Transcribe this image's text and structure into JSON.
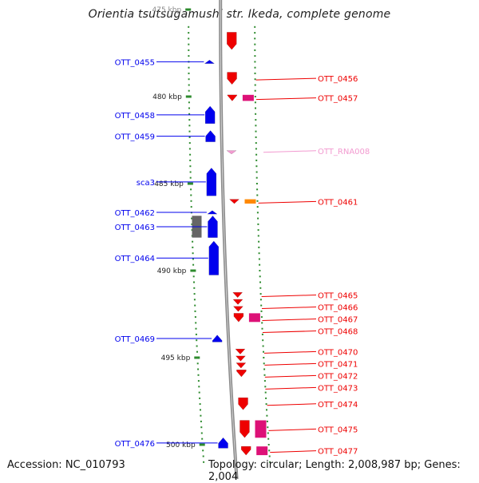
{
  "title": "Orientia tsutsugamushi str. Ikeda, complete genome",
  "footer": {
    "accession": "Accession: NC_010793",
    "topology": "Topology: circular; Length: 2,008,987 bp; Genes: 2,004"
  },
  "colors": {
    "backbone": "#8a8a8a",
    "tick": "#2e8b2e",
    "forward_gene": "#0000ee",
    "reverse_gene": "#ee0000",
    "reverse_pseudo": "#dd1177",
    "rna": "#f29ad0",
    "orange_feature": "#ff8800",
    "gray_feature": "#666666"
  },
  "scale_labels": [
    {
      "text": "475 kbp",
      "kbp": 475,
      "partial": true
    },
    {
      "text": "480 kbp",
      "kbp": 480
    },
    {
      "text": "485 kbp",
      "kbp": 485
    },
    {
      "text": "490 kbp",
      "kbp": 490
    },
    {
      "text": "495 kbp",
      "kbp": 495
    },
    {
      "text": "500 kbp",
      "kbp": 500
    }
  ],
  "forward_genes": [
    {
      "label": "OTT_0455",
      "start": 477.9,
      "end": 478.1
    },
    {
      "label": "OTT_0458",
      "start": 480.55,
      "end": 481.55
    },
    {
      "label": "OTT_0459",
      "start": 481.95,
      "end": 482.6
    },
    {
      "label": "sca3",
      "start": 484.1,
      "end": 485.7
    },
    {
      "label": "OTT_0462",
      "start": 486.55,
      "end": 486.75
    },
    {
      "label": "OTT_0463",
      "start": 486.85,
      "end": 488.1
    },
    {
      "label": "OTT_0464",
      "start": 488.3,
      "end": 490.25
    },
    {
      "label": "OTT_0469",
      "start": 493.7,
      "end": 494.1
    },
    {
      "label": "OTT_0476",
      "start": 499.6,
      "end": 500.2
    }
  ],
  "reverse_genes": [
    {
      "label": "",
      "start": 476.3,
      "end": 477.3
    },
    {
      "label": "OTT_0456",
      "start": 478.6,
      "end": 479.3
    },
    {
      "label": "OTT_0457",
      "start": 479.9,
      "end": 480.25
    },
    {
      "label": "OTT_0461",
      "start": 485.9,
      "end": 486.15
    },
    {
      "label": "OTT_0465",
      "start": 491.25,
      "end": 491.55
    },
    {
      "label": "OTT_0466",
      "start": 491.65,
      "end": 491.95
    },
    {
      "label": "OTT_0467",
      "start": 492.05,
      "end": 492.35
    },
    {
      "label": "OTT_0468",
      "start": 492.45,
      "end": 492.95
    },
    {
      "label": "OTT_0470",
      "start": 494.5,
      "end": 494.8
    },
    {
      "label": "OTT_0471",
      "start": 494.9,
      "end": 495.2
    },
    {
      "label": "OTT_0472",
      "start": 495.3,
      "end": 495.6
    },
    {
      "label": "OTT_0473",
      "start": 495.7,
      "end": 496.1
    },
    {
      "label": "OTT_0474",
      "start": 497.3,
      "end": 498.0
    },
    {
      "label": "OTT_0475",
      "start": 498.6,
      "end": 499.6
    },
    {
      "label": "OTT_0477",
      "start": 500.1,
      "end": 500.6
    }
  ],
  "rna_genes": [
    {
      "label": "OTT_RNA008",
      "start": 483.1,
      "end": 483.3
    }
  ],
  "other_features": [
    {
      "kind": "gray",
      "start": 486.85,
      "end": 488.1
    },
    {
      "kind": "orange",
      "start": 485.9,
      "end": 486.15
    },
    {
      "kind": "pink",
      "start": 479.9,
      "end": 480.25
    },
    {
      "kind": "pink",
      "start": 492.45,
      "end": 492.95
    },
    {
      "kind": "pink",
      "start": 498.6,
      "end": 499.6
    },
    {
      "kind": "pink",
      "start": 500.1,
      "end": 500.6
    }
  ]
}
